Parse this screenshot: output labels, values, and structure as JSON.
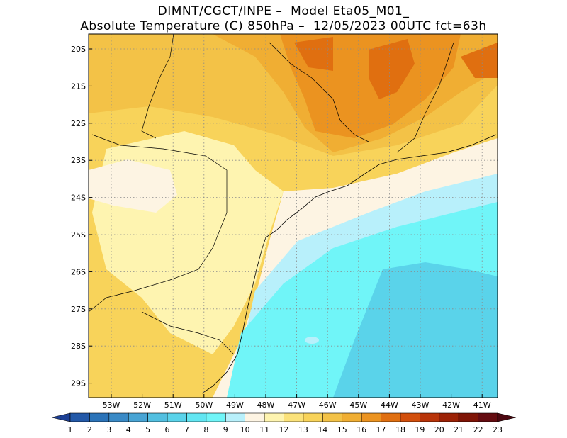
{
  "title": {
    "line1": "DIMNT/CGCT/INPE –  Model Eta05_M01_",
    "line2": "Absolute Temperature (C) 850hPa –  12/05/2023 00UTC fct=63h"
  },
  "map": {
    "lat_labels": [
      "20S",
      "21S",
      "22S",
      "23S",
      "24S",
      "25S",
      "26S",
      "27S",
      "28S",
      "29S"
    ],
    "lon_labels": [
      "53W",
      "52W",
      "51W",
      "50W",
      "49W",
      "48W",
      "47W",
      "46W",
      "45W",
      "44W",
      "43W",
      "42W",
      "41W"
    ],
    "gridlines": "dotted"
  },
  "colorbar": {
    "labels": [
      "1",
      "2",
      "3",
      "4",
      "5",
      "6",
      "7",
      "8",
      "9",
      "10",
      "11",
      "12",
      "13",
      "14",
      "15",
      "16",
      "17",
      "18",
      "19",
      "20",
      "21",
      "22",
      "23"
    ],
    "colors": [
      "#1c3f94",
      "#2359a8",
      "#2b73b8",
      "#3a8ac6",
      "#48a4d4",
      "#52bfe0",
      "#5ad3ea",
      "#62e6f2",
      "#70f5f8",
      "#b8f0fb",
      "#fdf4e3",
      "#fef4b0",
      "#fbe27a",
      "#f8d35a",
      "#f3c247",
      "#f0ae33",
      "#eb9320",
      "#e06f10",
      "#d24f0c",
      "#b83409",
      "#9c2206",
      "#7f1406",
      "#640b10",
      "#4b0710"
    ]
  }
}
